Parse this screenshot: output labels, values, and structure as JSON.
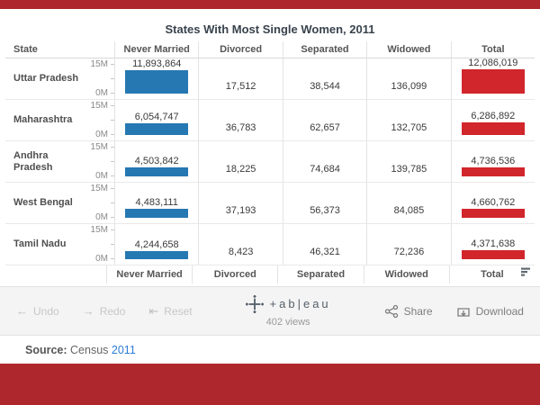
{
  "page": {
    "accent_color": "#ae272c"
  },
  "chart_data": {
    "type": "bar",
    "title": "States With Most Single Women, 2011",
    "state_column_header": "State",
    "y_axis": {
      "max_label": "15M",
      "min_label": "0M",
      "max_value": 15000000
    },
    "grid": "light vertical and horizontal separators",
    "measure_columns": [
      {
        "label": "Never Married",
        "key": "never_married",
        "bar_color": "#2678b2"
      },
      {
        "label": "Divorced",
        "key": "divorced",
        "bar_color": null
      },
      {
        "label": "Separated",
        "key": "separated",
        "bar_color": null
      },
      {
        "label": "Widowed",
        "key": "widowed",
        "bar_color": null
      },
      {
        "label": "Total",
        "key": "total",
        "bar_color": "#d1262b"
      }
    ],
    "rows": [
      {
        "state": "Uttar Pradesh",
        "values": {
          "never_married": 11893864,
          "divorced": 17512,
          "separated": 38544,
          "widowed": 136099,
          "total": 12086019
        }
      },
      {
        "state": "Maharashtra",
        "values": {
          "never_married": 6054747,
          "divorced": 36783,
          "separated": 62657,
          "widowed": 132705,
          "total": 6286892
        }
      },
      {
        "state": "Andhra Pradesh",
        "values": {
          "never_married": 4503842,
          "divorced": 18225,
          "separated": 74684,
          "widowed": 139785,
          "total": 4736536
        }
      },
      {
        "state": "West Bengal",
        "values": {
          "never_married": 4483111,
          "divorced": 37193,
          "separated": 56373,
          "widowed": 84085,
          "total": 4660762
        }
      },
      {
        "state": "Tamil Nadu",
        "values": {
          "never_married": 4244658,
          "divorced": 8423,
          "separated": 46321,
          "widowed": 72236,
          "total": 4371638
        }
      }
    ],
    "bar_colors": {
      "never_married": "#2678b2",
      "total": "#d1262b"
    }
  },
  "toolbar": {
    "undo": "Undo",
    "redo": "Redo",
    "reset": "Reset",
    "brand": "+ab|eau",
    "views": "402 views",
    "share": "Share",
    "download": "Download"
  },
  "source": {
    "label": "Source:",
    "text": "Census",
    "link": "2011"
  }
}
